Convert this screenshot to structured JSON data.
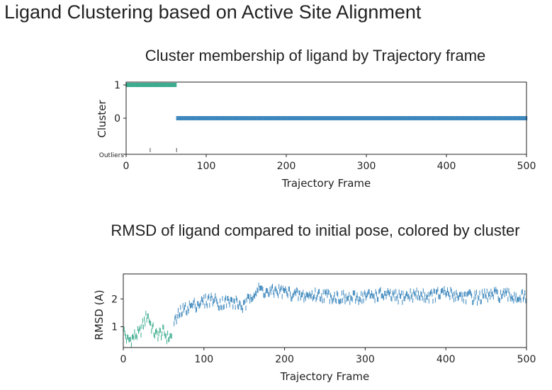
{
  "page": {
    "heading": "Ligand Clustering based on Active Site Alignment"
  },
  "colors": {
    "cluster_1": "#3aab8e",
    "cluster_0": "#3b86bc",
    "outlier": "#555555",
    "axis": "#222222"
  },
  "chart_data": [
    {
      "id": "cluster-membership",
      "type": "scatter",
      "title": "Cluster membership of ligand by Trajectory frame",
      "xlabel": "Trajectory Frame",
      "ylabel": "Cluster",
      "xlim": [
        0,
        500
      ],
      "xticks": [
        "0",
        "100",
        "200",
        "300",
        "400",
        "500"
      ],
      "ycategories": [
        "Outliers",
        "0",
        "1"
      ],
      "grid": false,
      "series": [
        {
          "cluster": "1",
          "color_key": "cluster_1",
          "x_start": 0,
          "x_end": 62,
          "y": "1"
        },
        {
          "cluster": "0",
          "color_key": "cluster_0",
          "x_start": 63,
          "x_end": 500,
          "y": "0"
        },
        {
          "cluster": "Outliers",
          "color_key": "outlier",
          "x": [
            30,
            63
          ],
          "y": "Outliers"
        }
      ]
    },
    {
      "id": "rmsd",
      "type": "scatter",
      "title": "RMSD of ligand compared to initial pose, colored by cluster",
      "xlabel": "Trajectory Frame",
      "ylabel": "RMSD (A)",
      "xlim": [
        0,
        500
      ],
      "ylim": [
        0.25,
        2.9
      ],
      "xticks": [
        "0",
        "100",
        "200",
        "300",
        "400",
        "500"
      ],
      "yticks": [
        "1",
        "2"
      ],
      "grid": false,
      "series": [
        {
          "cluster": "1",
          "color_key": "cluster_1",
          "x": [
            0,
            5,
            10,
            15,
            20,
            25,
            30,
            35,
            40,
            45,
            50,
            55,
            60
          ],
          "y": [
            0.9,
            0.5,
            0.55,
            0.7,
            0.75,
            1.1,
            1.45,
            1.0,
            0.7,
            0.75,
            0.8,
            0.6,
            0.65
          ]
        },
        {
          "cluster": "0",
          "color_key": "cluster_0",
          "x": [
            63,
            70,
            80,
            90,
            100,
            110,
            120,
            130,
            140,
            150,
            160,
            170,
            180,
            190,
            200,
            220,
            240,
            260,
            280,
            300,
            320,
            340,
            360,
            380,
            400,
            420,
            440,
            460,
            480,
            500
          ],
          "y": [
            1.1,
            1.5,
            1.7,
            1.8,
            1.9,
            2.0,
            1.85,
            1.9,
            1.85,
            1.7,
            2.2,
            2.35,
            2.2,
            2.3,
            2.25,
            2.1,
            2.15,
            2.1,
            2.0,
            2.1,
            2.15,
            2.05,
            2.15,
            2.1,
            2.2,
            2.1,
            2.05,
            2.15,
            2.1,
            2.05
          ]
        }
      ]
    }
  ]
}
